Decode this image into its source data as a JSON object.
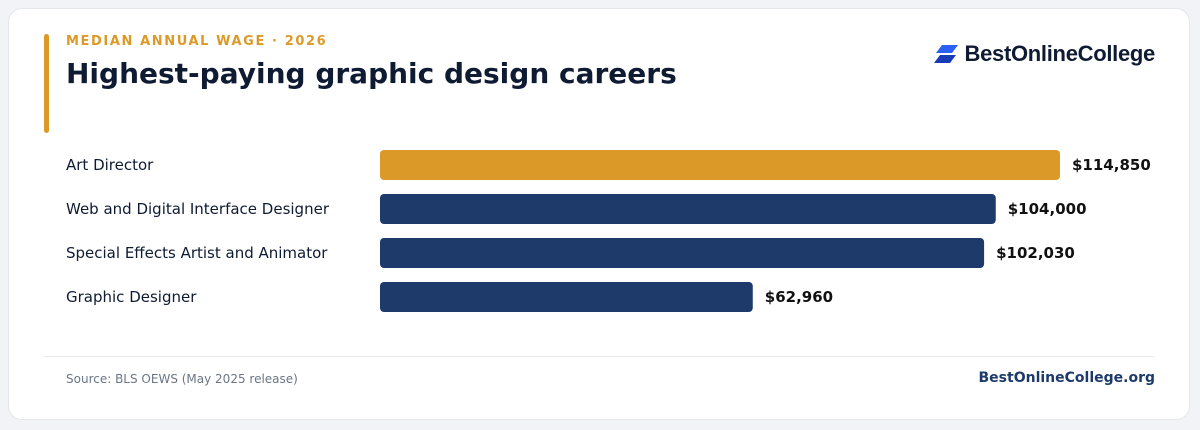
{
  "header": {
    "kicker": "MEDIAN ANNUAL WAGE · 2026",
    "title": "Highest-paying graphic design careers",
    "brand_name": "BestOnlineCollege",
    "brand_icon": "stacked-chevron-logo-icon"
  },
  "colors": {
    "accent": "#db9a28",
    "bar_primary": "#1e3a6b",
    "text_dark": "#0f1b33",
    "brand_blue": "#2b5ff5"
  },
  "chart_data": {
    "type": "bar",
    "orientation": "horizontal",
    "categories": [
      "Art Director",
      "Web and Digital Interface Designer",
      "Special Effects Artist and Animator",
      "Graphic Designer"
    ],
    "values": [
      114850,
      104000,
      102030,
      62960
    ],
    "value_labels": [
      "$114,850",
      "$104,000",
      "$102,030",
      "$62,960"
    ],
    "highlight_index": 0,
    "xlim": [
      0,
      114850
    ],
    "grid": false,
    "legend": "none"
  },
  "footer": {
    "source": "Source: BLS OEWS (May 2025 release)",
    "brand_url": "BestOnlineCollege.org"
  }
}
